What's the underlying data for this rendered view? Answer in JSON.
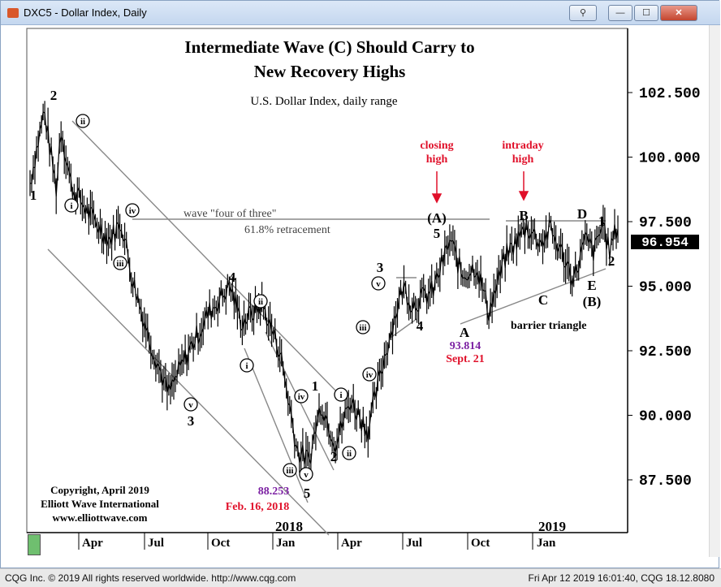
{
  "window": {
    "title": "DXC5 - Dollar Index, Daily",
    "icon": "chart-app-icon",
    "buttons": {
      "link": "link-icon",
      "minimize": "—",
      "maximize": "☐",
      "close": "✕"
    }
  },
  "footer": {
    "left": "CQG Inc. © 2019 All rights reserved worldwide. http://www.cqg.com",
    "right": "Fri Apr 12 2019 16:01:40, CQG 18.12.8080"
  },
  "copyright": {
    "line1": "Copyright, April 2019",
    "line2": "Elliott Wave International",
    "line3": "www.elliottwave.com"
  },
  "colors": {
    "price": "#000000",
    "channel": "#888888",
    "label_red": "#e0102a",
    "label_purple": "#7b1fa2",
    "last_price_box": "#000000"
  },
  "chart_data": {
    "type": "line",
    "title": "Intermediate Wave (C) Should Carry to New Recovery Highs",
    "title_line1": "Intermediate Wave (C) Should Carry to",
    "title_line2": "New Recovery Highs",
    "subtitle": "U.S. Dollar Index, daily range",
    "y_ticks": [
      "102.500",
      "100.000",
      "97.500",
      "95.000",
      "92.500",
      "90.000",
      "87.500"
    ],
    "y_tick_values": [
      102.5,
      100,
      97.5,
      95,
      92.5,
      90,
      87.5
    ],
    "ylim": [
      85.2,
      105.2
    ],
    "last_price": "96.954",
    "x_month_labels": [
      "Apr",
      "Jul",
      "Oct",
      "Jan",
      "Apr",
      "Jul",
      "Oct",
      "Jan"
    ],
    "x_year_labels": [
      "2018",
      "2019"
    ],
    "price_path": [
      {
        "t": 0.0,
        "y": 99.0
      },
      {
        "t": 0.024,
        "y": 101.8
      },
      {
        "t": 0.045,
        "y": 98.7
      },
      {
        "t": 0.052,
        "y": 101.2
      },
      {
        "t": 0.07,
        "y": 98.9
      },
      {
        "t": 0.1,
        "y": 97.8
      },
      {
        "t": 0.135,
        "y": 96.8
      },
      {
        "t": 0.155,
        "y": 97.5
      },
      {
        "t": 0.175,
        "y": 95.2
      },
      {
        "t": 0.2,
        "y": 93.2
      },
      {
        "t": 0.235,
        "y": 90.8
      },
      {
        "t": 0.27,
        "y": 92.5
      },
      {
        "t": 0.305,
        "y": 94.0
      },
      {
        "t": 0.34,
        "y": 95.0
      },
      {
        "t": 0.36,
        "y": 93.6
      },
      {
        "t": 0.395,
        "y": 94.3
      },
      {
        "t": 0.425,
        "y": 92.5
      },
      {
        "t": 0.455,
        "y": 88.6
      },
      {
        "t": 0.475,
        "y": 88.25
      },
      {
        "t": 0.495,
        "y": 90.5
      },
      {
        "t": 0.52,
        "y": 88.9
      },
      {
        "t": 0.545,
        "y": 90.6
      },
      {
        "t": 0.575,
        "y": 89.4
      },
      {
        "t": 0.6,
        "y": 92.0
      },
      {
        "t": 0.62,
        "y": 93.8
      },
      {
        "t": 0.635,
        "y": 95.0
      },
      {
        "t": 0.65,
        "y": 94.3
      },
      {
        "t": 0.685,
        "y": 94.8
      },
      {
        "t": 0.715,
        "y": 96.8
      },
      {
        "t": 0.735,
        "y": 95.4
      },
      {
        "t": 0.76,
        "y": 95.8
      },
      {
        "t": 0.78,
        "y": 94.0
      },
      {
        "t": 0.81,
        "y": 96.2
      },
      {
        "t": 0.845,
        "y": 97.3
      },
      {
        "t": 0.87,
        "y": 96.7
      },
      {
        "t": 0.885,
        "y": 97.2
      },
      {
        "t": 0.9,
        "y": 96.5
      },
      {
        "t": 0.925,
        "y": 95.3
      },
      {
        "t": 0.945,
        "y": 96.8
      },
      {
        "t": 0.96,
        "y": 96.3
      },
      {
        "t": 0.975,
        "y": 97.5
      },
      {
        "t": 0.985,
        "y": 96.3
      },
      {
        "t": 1.0,
        "y": 97.4
      }
    ],
    "annotations": {
      "red": [
        "closing",
        "high",
        "intraday",
        "high",
        "Feb. 16, 2018",
        "Sept. 21"
      ],
      "purple": [
        "88.253",
        "93.814"
      ],
      "text": [
        "wave \"four of three\"",
        "61.8% retracement",
        "barrier triangle"
      ],
      "wave_labels": [
        "2",
        "1",
        "3",
        "4",
        "1",
        "2",
        "3",
        "4",
        "5",
        "5",
        "(A)",
        "A",
        "B",
        "C",
        "D",
        "E",
        "(B)",
        "1",
        "2"
      ],
      "circled_labels": [
        "ii",
        "i",
        "iv",
        "iii",
        "v",
        "ii",
        "i",
        "iii",
        "iv",
        "v",
        "i",
        "ii",
        "iii",
        "v",
        "iv",
        "v"
      ]
    }
  }
}
